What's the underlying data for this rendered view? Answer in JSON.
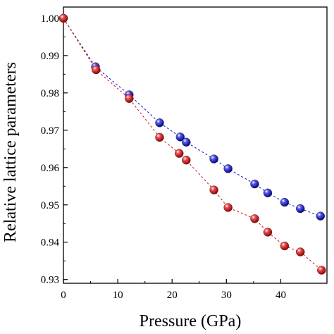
{
  "chart_data": {
    "type": "scatter",
    "xlabel": "Pressure (GPa)",
    "ylabel": "Relative lattice parameters",
    "xlim": [
      0,
      48.5
    ],
    "ylim": [
      0.929,
      1.003
    ],
    "x_ticks": [
      0,
      10,
      20,
      30,
      40
    ],
    "x_tick_labels": [
      "0",
      "10",
      "20",
      "30",
      "40"
    ],
    "y_ticks": [
      0.93,
      0.94,
      0.95,
      0.96,
      0.97,
      0.98,
      0.99,
      1.0
    ],
    "y_tick_labels": [
      "0.93",
      "0.94",
      "0.95",
      "0.96",
      "0.97",
      "0.98",
      "0.99",
      "1.00"
    ],
    "grid": false,
    "series": [
      {
        "color": "#1010c8",
        "line_style": "dashed",
        "x": [
          0,
          5.9,
          12.1,
          17.7,
          21.5,
          22.6,
          27.7,
          30.3,
          35.2,
          37.6,
          40.7,
          43.6,
          47.3
        ],
        "y": [
          1.0,
          0.987,
          0.9795,
          0.972,
          0.9682,
          0.9668,
          0.9623,
          0.9597,
          0.9556,
          0.9532,
          0.9507,
          0.949,
          0.947
        ]
      },
      {
        "color": "#e01010",
        "line_style": "dashed",
        "x": [
          0,
          6.0,
          12.1,
          17.7,
          21.3,
          22.6,
          27.7,
          30.3,
          35.2,
          37.6,
          40.7,
          43.6,
          47.5
        ],
        "y": [
          1.0,
          0.9862,
          0.9785,
          0.9681,
          0.9638,
          0.962,
          0.954,
          0.9493,
          0.9463,
          0.9427,
          0.939,
          0.9374,
          0.9325
        ]
      }
    ]
  }
}
